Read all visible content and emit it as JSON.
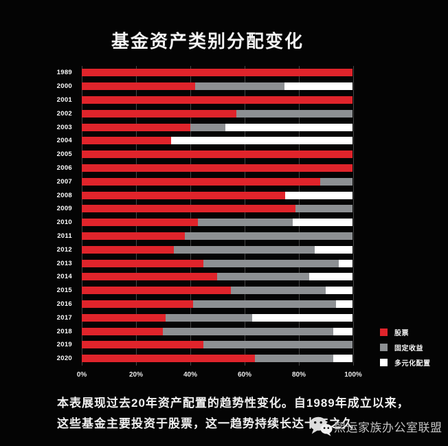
{
  "title": "基金资产类别分配变化",
  "chart_data": {
    "type": "bar",
    "orientation": "horizontal",
    "stacked": true,
    "title": "基金资产类别分配变化",
    "categories": [
      "1989",
      "2000",
      "2001",
      "2002",
      "2003",
      "2004",
      "2005",
      "2006",
      "2007",
      "2008",
      "2009",
      "2010",
      "2011",
      "2012",
      "2013",
      "2014",
      "2015",
      "2016",
      "2017",
      "2018",
      "2019",
      "2020"
    ],
    "series": [
      {
        "key": "stocks",
        "name": "股票",
        "color": "#e0242b",
        "values": [
          100,
          42,
          100,
          57,
          40,
          33,
          100,
          100,
          88,
          75,
          79,
          43,
          38,
          34,
          45,
          50,
          55,
          41,
          31,
          30,
          45,
          64
        ]
      },
      {
        "key": "fixed-income",
        "name": "固定收益",
        "color": "#8d9093",
        "values": [
          0,
          33,
          0,
          43,
          13,
          0,
          0,
          0,
          12,
          0,
          21,
          35,
          62,
          52,
          50,
          34,
          35,
          53,
          32,
          63,
          55,
          29
        ]
      },
      {
        "key": "diversified",
        "name": "多元化配置",
        "color": "#ffffff",
        "values": [
          0,
          25,
          0,
          0,
          47,
          67,
          0,
          0,
          0,
          25,
          0,
          22,
          0,
          14,
          5,
          16,
          10,
          6,
          37,
          7,
          0,
          7
        ]
      }
    ],
    "x_ticks": [
      "0%",
      "20%",
      "40%",
      "60%",
      "80%",
      "100%"
    ],
    "xlim": [
      0,
      100
    ],
    "xlabel": "",
    "ylabel": "",
    "grid": "vertical",
    "legend_position": "bottom-right",
    "background_color": "#040404"
  },
  "caption": {
    "line1": "本表展现过去20年资产配置的趋势性变化。自1989年成立以来，",
    "line2": "这些基金主要投资于股票，这一趋势持续长达十年之久"
  },
  "watermark": {
    "icon": "wechat-icon",
    "text": "熙运家族办公室联盟"
  }
}
